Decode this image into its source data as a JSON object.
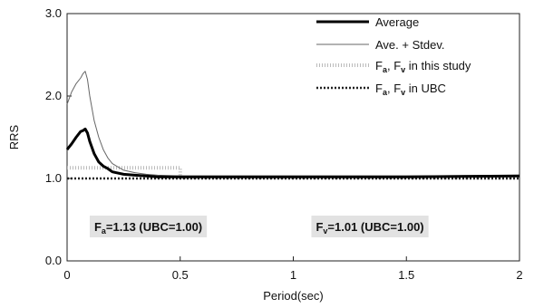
{
  "chart_data": {
    "type": "line",
    "xlabel": "Period(sec)",
    "ylabel": "RRS",
    "xlim": [
      0,
      2
    ],
    "ylim": [
      0,
      3
    ],
    "x_ticks": [
      0,
      0.5,
      1,
      1.5,
      2
    ],
    "x_tick_labels": [
      "0",
      "0.5",
      "1",
      "1.5",
      "2"
    ],
    "y_ticks": [
      0,
      1,
      2,
      3
    ],
    "y_tick_labels": [
      "0.0",
      "1.0",
      "2.0",
      "3.0"
    ],
    "grid": false,
    "legend_position": "top-right",
    "series": [
      {
        "name": "Average",
        "color": "#000000",
        "style": "thick-solid",
        "x": [
          0,
          0.02,
          0.04,
          0.06,
          0.07,
          0.08,
          0.09,
          0.1,
          0.12,
          0.14,
          0.16,
          0.18,
          0.2,
          0.25,
          0.3,
          0.35,
          0.4,
          0.5,
          0.7,
          1.0,
          1.5,
          2.0
        ],
        "y": [
          1.35,
          1.42,
          1.5,
          1.57,
          1.58,
          1.6,
          1.55,
          1.45,
          1.3,
          1.2,
          1.15,
          1.12,
          1.08,
          1.05,
          1.04,
          1.03,
          1.02,
          1.02,
          1.02,
          1.02,
          1.02,
          1.03
        ]
      },
      {
        "name": "Ave. + Stdev.",
        "color": "#666666",
        "style": "thin-solid",
        "x": [
          0,
          0.02,
          0.04,
          0.06,
          0.07,
          0.08,
          0.09,
          0.1,
          0.12,
          0.14,
          0.16,
          0.18,
          0.2,
          0.25,
          0.3,
          0.35,
          0.4,
          0.5,
          0.7,
          1.0,
          1.5,
          2.0
        ],
        "y": [
          1.9,
          2.05,
          2.15,
          2.22,
          2.27,
          2.3,
          2.2,
          2.0,
          1.7,
          1.5,
          1.35,
          1.25,
          1.18,
          1.1,
          1.07,
          1.05,
          1.04,
          1.03,
          1.03,
          1.03,
          1.03,
          1.04
        ]
      },
      {
        "name": "Fa, Fv in this study",
        "color": "#bbbbbb",
        "style": "dotted-light",
        "x": [
          0,
          0.5,
          0.5,
          2.0
        ],
        "y": [
          1.13,
          1.13,
          1.01,
          1.01
        ]
      },
      {
        "name": "Fa, Fv in UBC",
        "color": "#222222",
        "style": "cross-dotted",
        "x": [
          0,
          2.0
        ],
        "y": [
          1.0,
          1.0
        ]
      }
    ],
    "legend": [
      {
        "label": "Average"
      },
      {
        "label": "Ave. + Stdev."
      },
      {
        "label_main": "F",
        "sub_a": "a",
        "mid": ", F",
        "sub_v": "v",
        "tail": " in this study"
      },
      {
        "label_main": "F",
        "sub_a": "a",
        "mid": ", F",
        "sub_v": "v",
        "tail": " in UBC"
      }
    ],
    "annotations": [
      {
        "main": "F",
        "sub": "a",
        "text": "=1.13 (UBC=1.00)",
        "x": 0.12
      },
      {
        "main": "F",
        "sub": "v",
        "text": "=1.01 (UBC=1.00)",
        "x": 1.1
      }
    ]
  }
}
